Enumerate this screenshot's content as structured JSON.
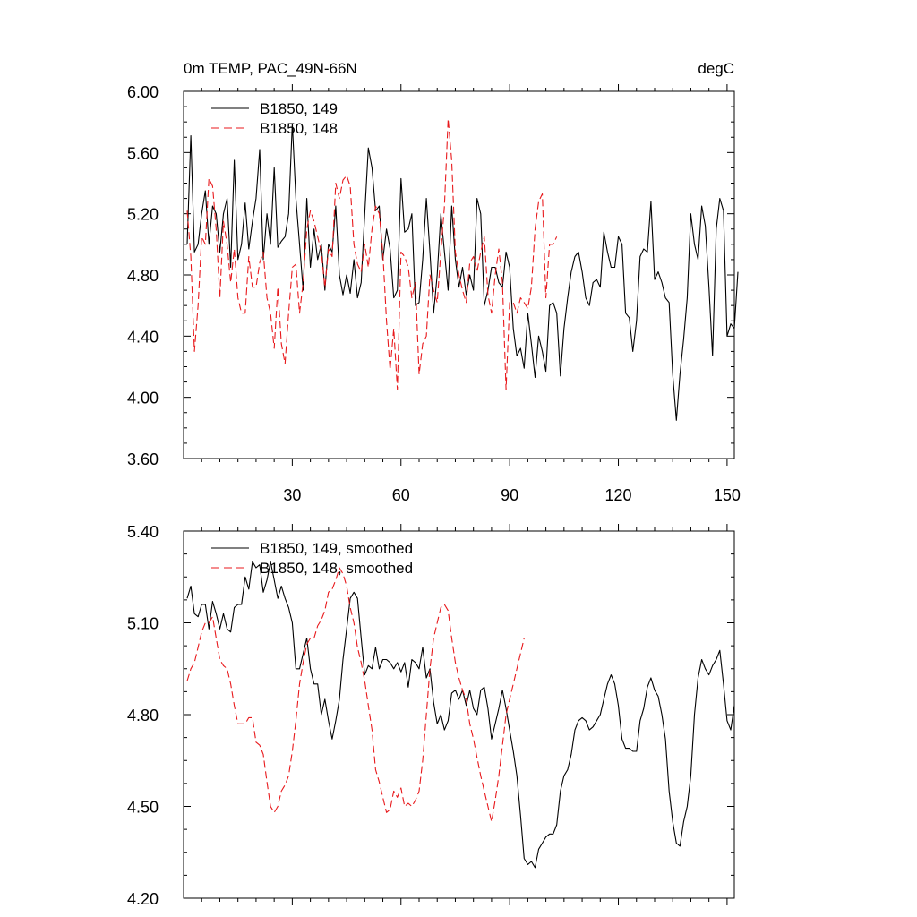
{
  "chart_data": [
    {
      "type": "line",
      "title_left": "0m TEMP, PAC_49N-66N",
      "title_right": "degC",
      "xlim": [
        0,
        152
      ],
      "ylim": [
        3.6,
        6.0
      ],
      "x_ticks": [
        30,
        60,
        90,
        120,
        150
      ],
      "x_tick_labels": [
        "30",
        "60",
        "90",
        "120",
        "150"
      ],
      "y_ticks": [
        3.6,
        4.0,
        4.4,
        4.8,
        5.2,
        5.6,
        6.0
      ],
      "y_tick_labels": [
        "3.60",
        "4.00",
        "4.40",
        "4.80",
        "5.20",
        "5.60",
        "6.00"
      ],
      "series": [
        {
          "name": "B1850, 149",
          "color": "#000000",
          "dash": "solid",
          "values": [
            5.0,
            5.71,
            4.95,
            5.0,
            5.2,
            5.35,
            5.0,
            5.25,
            5.2,
            4.95,
            5.2,
            5.3,
            4.85,
            5.55,
            4.9,
            5.0,
            5.27,
            4.97,
            5.15,
            5.3,
            5.62,
            4.9,
            5.2,
            5.0,
            5.5,
            4.98,
            5.02,
            5.05,
            5.2,
            5.79,
            5.3,
            5.0,
            4.7,
            5.3,
            4.85,
            5.1,
            4.9,
            5.0,
            4.7,
            5.0,
            4.95,
            5.25,
            4.8,
            4.67,
            4.8,
            4.68,
            4.9,
            4.65,
            4.75,
            5.2,
            5.63,
            5.5,
            5.22,
            5.25,
            4.9,
            5.1,
            4.97,
            4.65,
            4.7,
            5.43,
            5.08,
            5.1,
            5.2,
            4.6,
            4.62,
            4.9,
            5.3,
            4.95,
            4.55,
            4.8,
            5.2,
            4.95,
            4.7,
            5.25,
            4.9,
            4.72,
            4.85,
            4.67,
            4.8,
            4.7,
            5.3,
            5.2,
            4.6,
            4.7,
            4.85,
            4.85,
            4.75,
            4.72,
            4.95,
            4.85,
            4.45,
            4.27,
            4.32,
            4.19,
            4.55,
            4.35,
            4.13,
            4.4,
            4.3,
            4.17,
            4.6,
            4.62,
            4.55,
            4.14,
            4.45,
            4.65,
            4.82,
            4.92,
            4.95,
            4.82,
            4.65,
            4.6,
            4.75,
            4.77,
            4.72,
            5.08,
            4.95,
            4.85,
            4.85,
            5.05,
            5.0,
            4.55,
            4.52,
            4.3,
            4.5,
            4.92,
            4.97,
            4.95,
            5.28,
            4.77,
            4.82,
            4.75,
            4.65,
            4.62,
            4.15,
            3.85,
            4.15,
            4.38,
            4.65,
            5.2,
            5.0,
            4.9,
            5.25,
            5.12,
            4.72,
            4.27,
            5.1,
            5.3,
            5.22,
            4.4,
            4.48,
            4.45,
            4.82
          ]
        },
        {
          "name": "B1850, 148",
          "color": "#e8191c",
          "dash": "dashed",
          "values": [
            5.22,
            4.92,
            4.3,
            4.6,
            5.05,
            5.0,
            5.43,
            5.38,
            5.1,
            4.65,
            5.15,
            5.0,
            4.75,
            4.97,
            4.65,
            4.55,
            4.55,
            4.92,
            4.72,
            4.72,
            4.88,
            4.95,
            4.65,
            4.55,
            4.32,
            4.72,
            4.35,
            4.22,
            4.55,
            4.85,
            4.87,
            4.55,
            4.75,
            5.1,
            5.22,
            5.15,
            5.05,
            4.95,
            4.72,
            4.97,
            4.92,
            5.4,
            5.3,
            5.42,
            5.45,
            5.38,
            5.0,
            4.87,
            4.82,
            5.0,
            4.85,
            5.1,
            5.25,
            5.2,
            4.95,
            4.5,
            4.18,
            4.45,
            4.05,
            4.95,
            4.92,
            4.85,
            4.65,
            4.75,
            4.15,
            4.35,
            4.4,
            4.8,
            4.7,
            4.62,
            4.95,
            5.25,
            5.82,
            5.55,
            4.95,
            4.8,
            4.7,
            4.62,
            4.88,
            4.92,
            4.82,
            4.95,
            5.05,
            4.67,
            4.55,
            4.8,
            4.97,
            4.75,
            4.05,
            4.62,
            4.62,
            4.55,
            4.65,
            4.62,
            4.58,
            4.72,
            5.1,
            5.28,
            5.33,
            4.65,
            5.0,
            5.0,
            5.05
          ]
        }
      ]
    },
    {
      "type": "line",
      "xlim": [
        0,
        152
      ],
      "ylim": [
        4.2,
        5.4
      ],
      "y_ticks": [
        4.2,
        4.5,
        4.8,
        5.1,
        5.4
      ],
      "y_tick_labels": [
        "4.20",
        "4.50",
        "4.80",
        "5.10",
        "5.40"
      ],
      "series": [
        {
          "name": "B1850, 149, smoothed",
          "color": "#000000",
          "dash": "solid",
          "values": [
            5.18,
            5.22,
            5.13,
            5.12,
            5.16,
            5.16,
            5.08,
            5.17,
            5.13,
            5.08,
            5.13,
            5.08,
            5.07,
            5.15,
            5.16,
            5.16,
            5.25,
            5.21,
            5.3,
            5.28,
            5.29,
            5.2,
            5.24,
            5.3,
            5.24,
            5.18,
            5.22,
            5.18,
            5.15,
            5.1,
            4.95,
            4.95,
            5.0,
            5.05,
            4.95,
            4.9,
            4.9,
            4.8,
            4.85,
            4.78,
            4.72,
            4.78,
            4.85,
            4.98,
            5.08,
            5.18,
            5.2,
            5.18,
            5.05,
            4.93,
            4.96,
            4.95,
            5.02,
            4.95,
            4.98,
            4.98,
            4.97,
            4.95,
            4.97,
            4.94,
            4.97,
            4.89,
            4.98,
            4.97,
            4.95,
            5.02,
            4.92,
            4.95,
            4.84,
            4.77,
            4.8,
            4.75,
            4.78,
            4.87,
            4.88,
            4.85,
            4.88,
            4.83,
            4.88,
            4.82,
            4.8,
            4.88,
            4.89,
            4.82,
            4.72,
            4.77,
            4.82,
            4.88,
            4.82,
            4.75,
            4.68,
            4.6,
            4.47,
            4.33,
            4.31,
            4.32,
            4.3,
            4.36,
            4.38,
            4.4,
            4.41,
            4.41,
            4.44,
            4.55,
            4.6,
            4.62,
            4.67,
            4.75,
            4.78,
            4.79,
            4.78,
            4.75,
            4.76,
            4.78,
            4.8,
            4.85,
            4.9,
            4.93,
            4.9,
            4.83,
            4.72,
            4.69,
            4.69,
            4.68,
            4.68,
            4.78,
            4.82,
            4.89,
            4.92,
            4.88,
            4.86,
            4.8,
            4.72,
            4.55,
            4.45,
            4.38,
            4.37,
            4.45,
            4.5,
            4.6,
            4.8,
            4.92,
            4.98,
            4.95,
            4.93,
            4.96,
            4.98,
            5.01,
            4.9,
            4.78,
            4.75,
            4.83
          ]
        },
        {
          "name": "B1850, 148, smoothed",
          "color": "#e8191c",
          "dash": "dashed",
          "values": [
            4.91,
            4.95,
            4.97,
            5.02,
            5.07,
            5.1,
            5.1,
            5.12,
            5.05,
            4.98,
            4.96,
            4.95,
            4.9,
            4.83,
            4.77,
            4.77,
            4.77,
            4.79,
            4.79,
            4.71,
            4.7,
            4.67,
            4.58,
            4.5,
            4.48,
            4.5,
            4.55,
            4.57,
            4.6,
            4.68,
            4.78,
            4.9,
            4.97,
            5.03,
            5.05,
            5.05,
            5.09,
            5.11,
            5.14,
            5.2,
            5.21,
            5.24,
            5.28,
            5.26,
            5.22,
            5.15,
            5.1,
            5.02,
            4.97,
            4.91,
            4.83,
            4.75,
            4.62,
            4.58,
            4.53,
            4.48,
            4.49,
            4.55,
            4.53,
            4.56,
            4.5,
            4.51,
            4.5,
            4.52,
            4.55,
            4.65,
            4.8,
            4.95,
            5.05,
            5.1,
            5.15,
            5.16,
            5.14,
            5.05,
            4.97,
            4.92,
            4.88,
            4.85,
            4.77,
            4.72,
            4.66,
            4.6,
            4.55,
            4.5,
            4.45,
            4.52,
            4.6,
            4.7,
            4.8,
            4.85,
            4.9,
            4.95,
            5.0,
            5.05
          ]
        }
      ]
    }
  ]
}
